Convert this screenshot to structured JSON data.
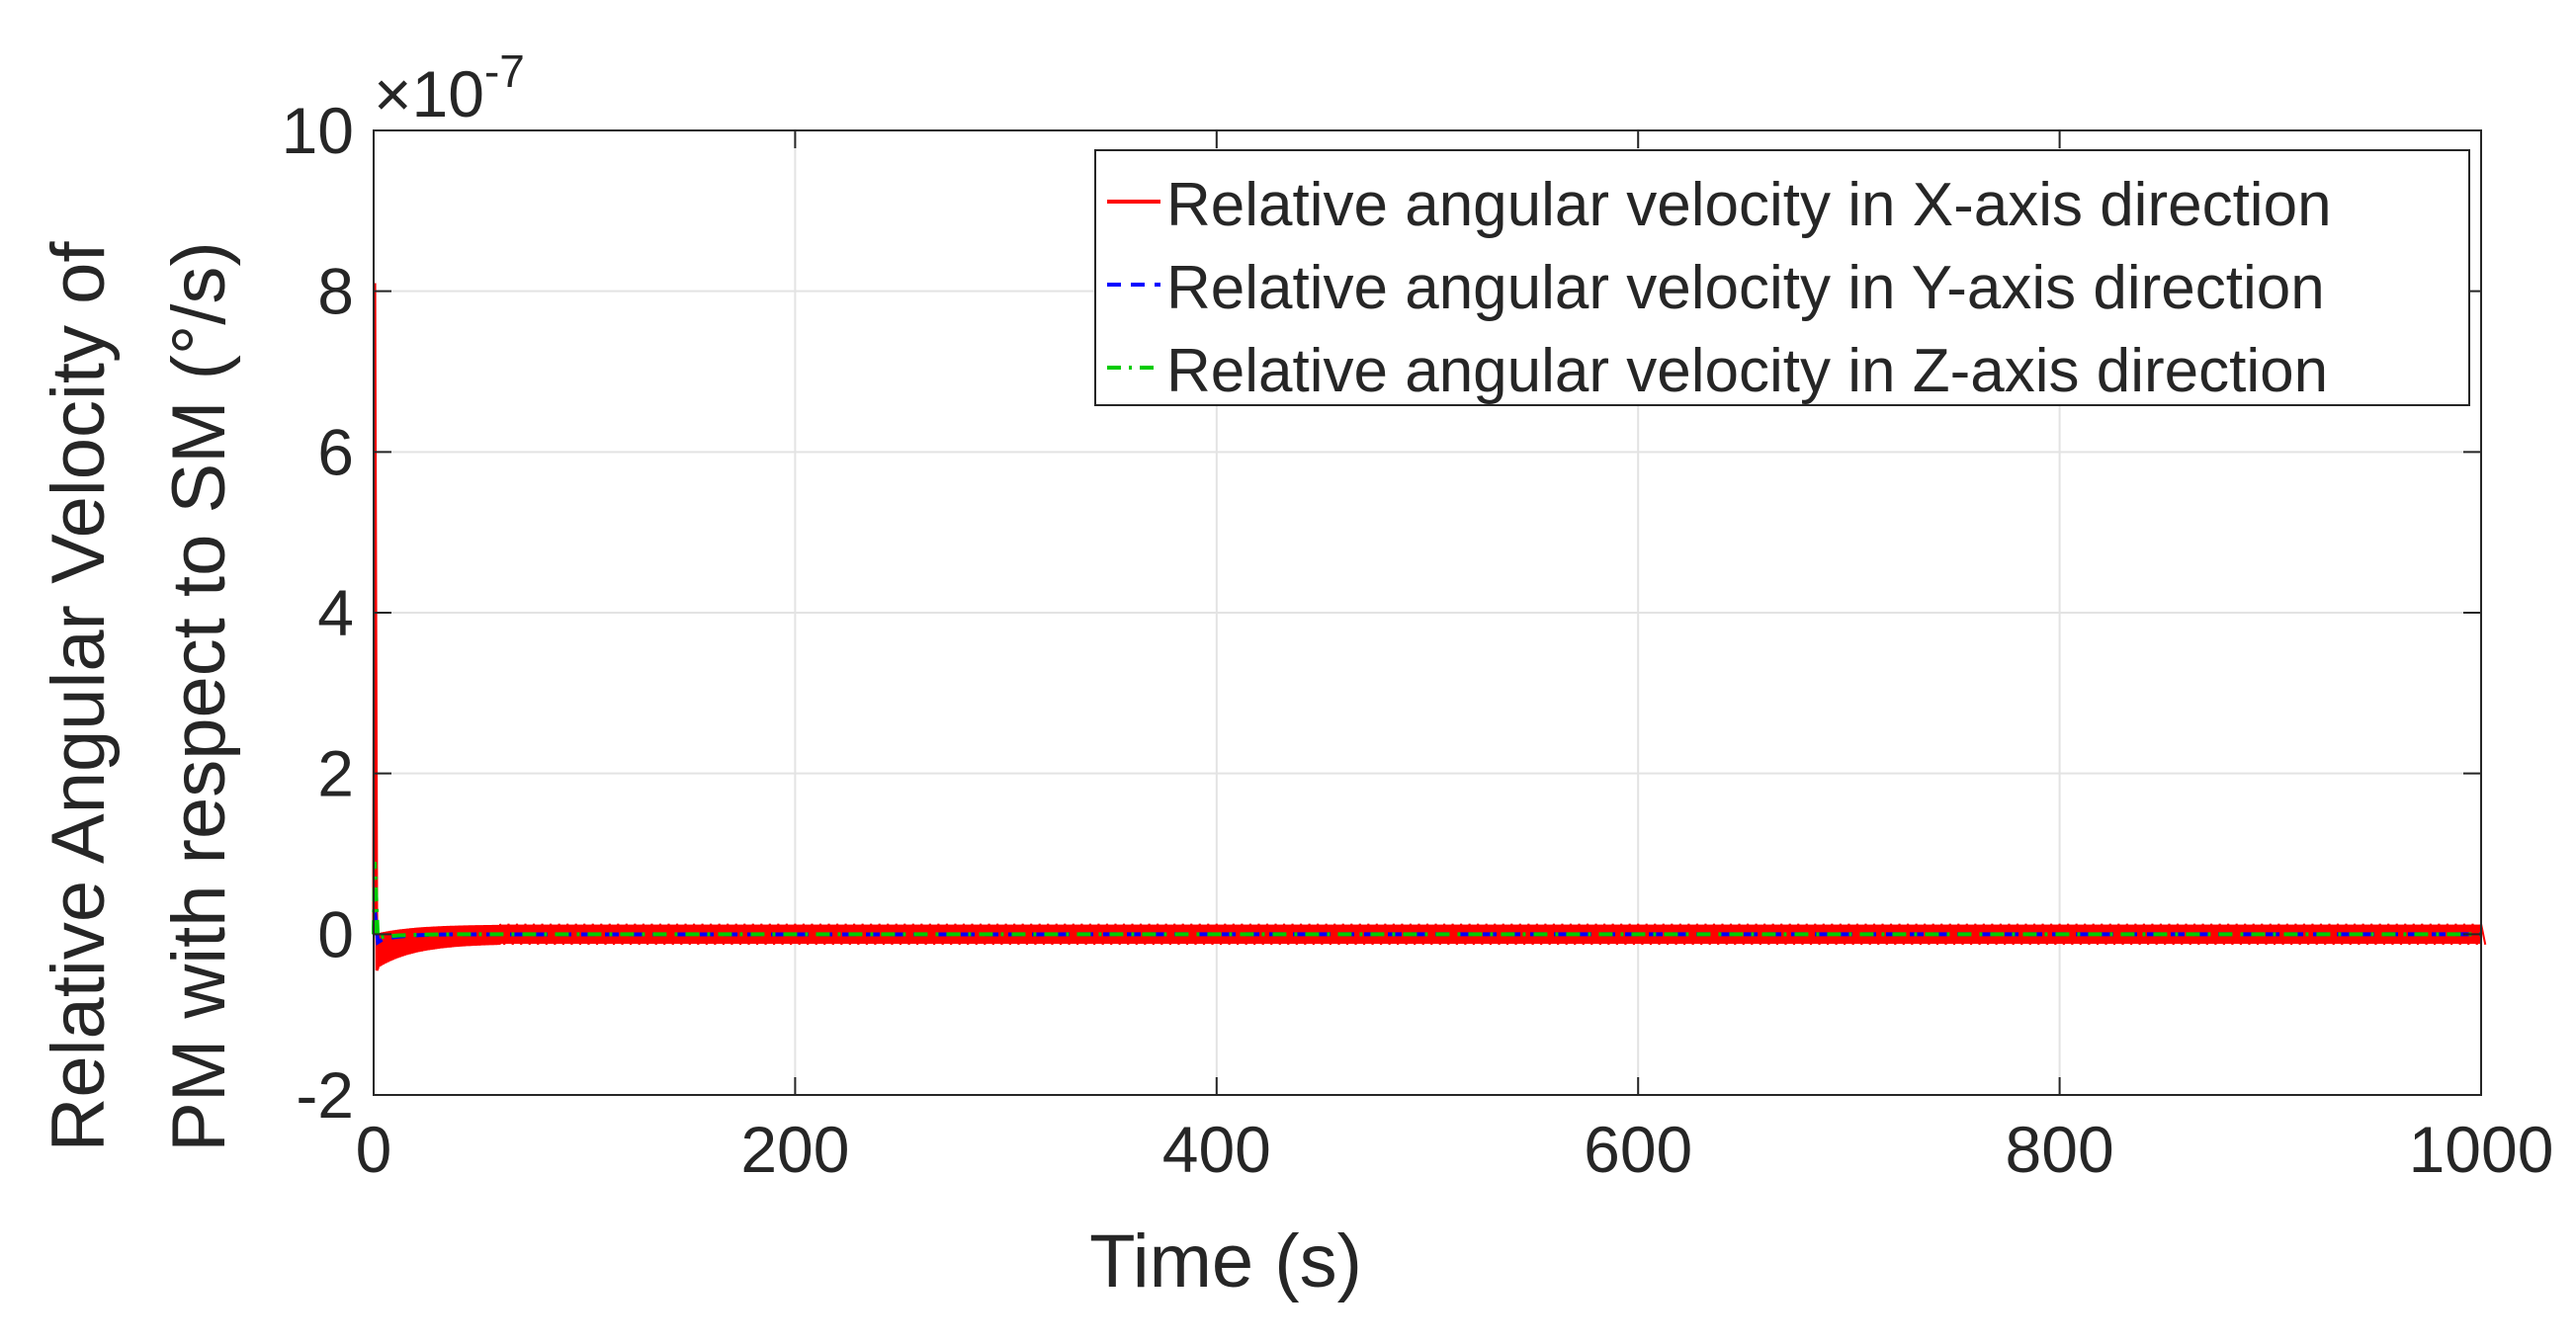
{
  "chart_data": {
    "type": "line",
    "title": "",
    "xlabel": "Time (s)",
    "ylabel_lines": [
      "Relative Angular Velocity of",
      "PM with respect to SM (°/s)"
    ],
    "y_exponent_base": "×10",
    "y_exponent_power": "-7",
    "xlim": [
      0,
      1000
    ],
    "ylim": [
      -2,
      10
    ],
    "x_ticks": [
      0,
      200,
      400,
      600,
      800,
      1000
    ],
    "x_tick_labels": [
      "0",
      "200",
      "400",
      "600",
      "800",
      "1000"
    ],
    "y_ticks": [
      -2,
      0,
      2,
      4,
      6,
      8,
      10
    ],
    "y_tick_labels": [
      "-2",
      "0",
      "2",
      "4",
      "6",
      "8",
      "10"
    ],
    "grid": true,
    "legend_position": "top-right",
    "series": [
      {
        "name": "Relative angular velocity in X-axis direction",
        "color": "#ff0000",
        "style": "solid",
        "initial_peak": 8.1,
        "initial_dip": -0.45,
        "steady_state_band": [
          -0.12,
          0.12
        ]
      },
      {
        "name": "Relative angular velocity in Y-axis direction",
        "color": "#0000ff",
        "style": "dashed",
        "initial_peak": 0.3,
        "initial_dip": -0.1,
        "steady_state_band": [
          -0.01,
          0.01
        ]
      },
      {
        "name": "Relative angular velocity in Z-axis direction",
        "color": "#00cc00",
        "style": "dashdot",
        "initial_peak": 0.9,
        "initial_dip": -0.05,
        "steady_state_band": [
          -0.01,
          0.01
        ]
      }
    ]
  }
}
